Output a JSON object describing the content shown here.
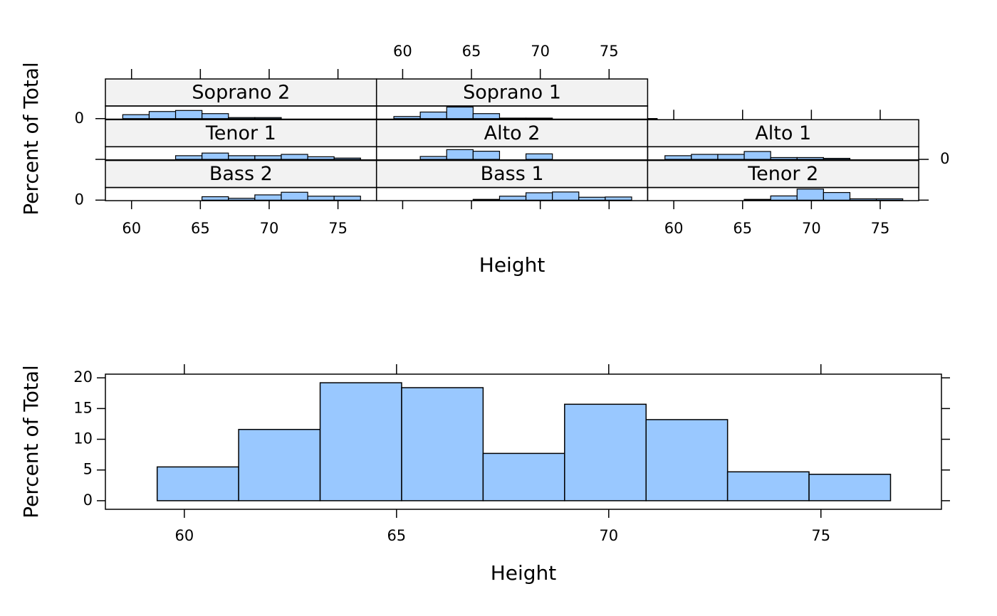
{
  "chart_data": [
    {
      "type": "facet-histogram",
      "xlabel": "Height",
      "ylabel": "Percent of Total",
      "bins": [
        59.36,
        61.28,
        63.2,
        65.12,
        67.04,
        68.96,
        70.88,
        72.8,
        74.72,
        76.64
      ],
      "xlim": [
        58.1,
        77.8
      ],
      "xticks": [
        60,
        65,
        70,
        75
      ],
      "ylim": [
        -2,
        48
      ],
      "yticks": [
        0
      ],
      "columns": 3,
      "color": "#99c8ff",
      "strip_color": "#f2f2f2",
      "panels": [
        {
          "name": "Bass 2",
          "values": [
            0,
            0,
            0,
            13,
            7,
            20,
            30,
            15,
            15
          ]
        },
        {
          "name": "Bass 1",
          "values": [
            0,
            0,
            0,
            3,
            15,
            28,
            31,
            11,
            12
          ]
        },
        {
          "name": "Tenor 2",
          "values": [
            0,
            0,
            0,
            3,
            16,
            42,
            29,
            5,
            5
          ]
        },
        {
          "name": "Tenor 1",
          "values": [
            0,
            0,
            14,
            24,
            14,
            14,
            19,
            10,
            5
          ]
        },
        {
          "name": "Alto 2",
          "values": [
            0,
            11,
            37,
            31,
            0,
            21,
            0,
            0,
            0
          ]
        },
        {
          "name": "Alto 1",
          "values": [
            14,
            19,
            19,
            30,
            7,
            7,
            4,
            0,
            0
          ]
        },
        {
          "name": "Soprano 2",
          "values": [
            15,
            27,
            31,
            19,
            4,
            4,
            0,
            0,
            0
          ]
        },
        {
          "name": "Soprano 1",
          "values": [
            8,
            25,
            44,
            19,
            2,
            2,
            0,
            0,
            0
          ]
        }
      ]
    },
    {
      "type": "histogram",
      "xlabel": "Height",
      "ylabel": "Percent of Total",
      "bins": [
        59.36,
        61.28,
        63.2,
        65.12,
        67.04,
        68.96,
        70.88,
        72.8,
        74.72,
        76.64
      ],
      "values": [
        5.5,
        11.6,
        19.2,
        18.4,
        7.7,
        15.7,
        13.2,
        4.7,
        4.3
      ],
      "xlim": [
        58.14,
        77.84
      ],
      "xticks": [
        60,
        65,
        70,
        75
      ],
      "ylim": [
        -1.4,
        20.6
      ],
      "yticks": [
        0,
        5,
        10,
        15,
        20
      ],
      "color": "#99c8ff"
    }
  ]
}
